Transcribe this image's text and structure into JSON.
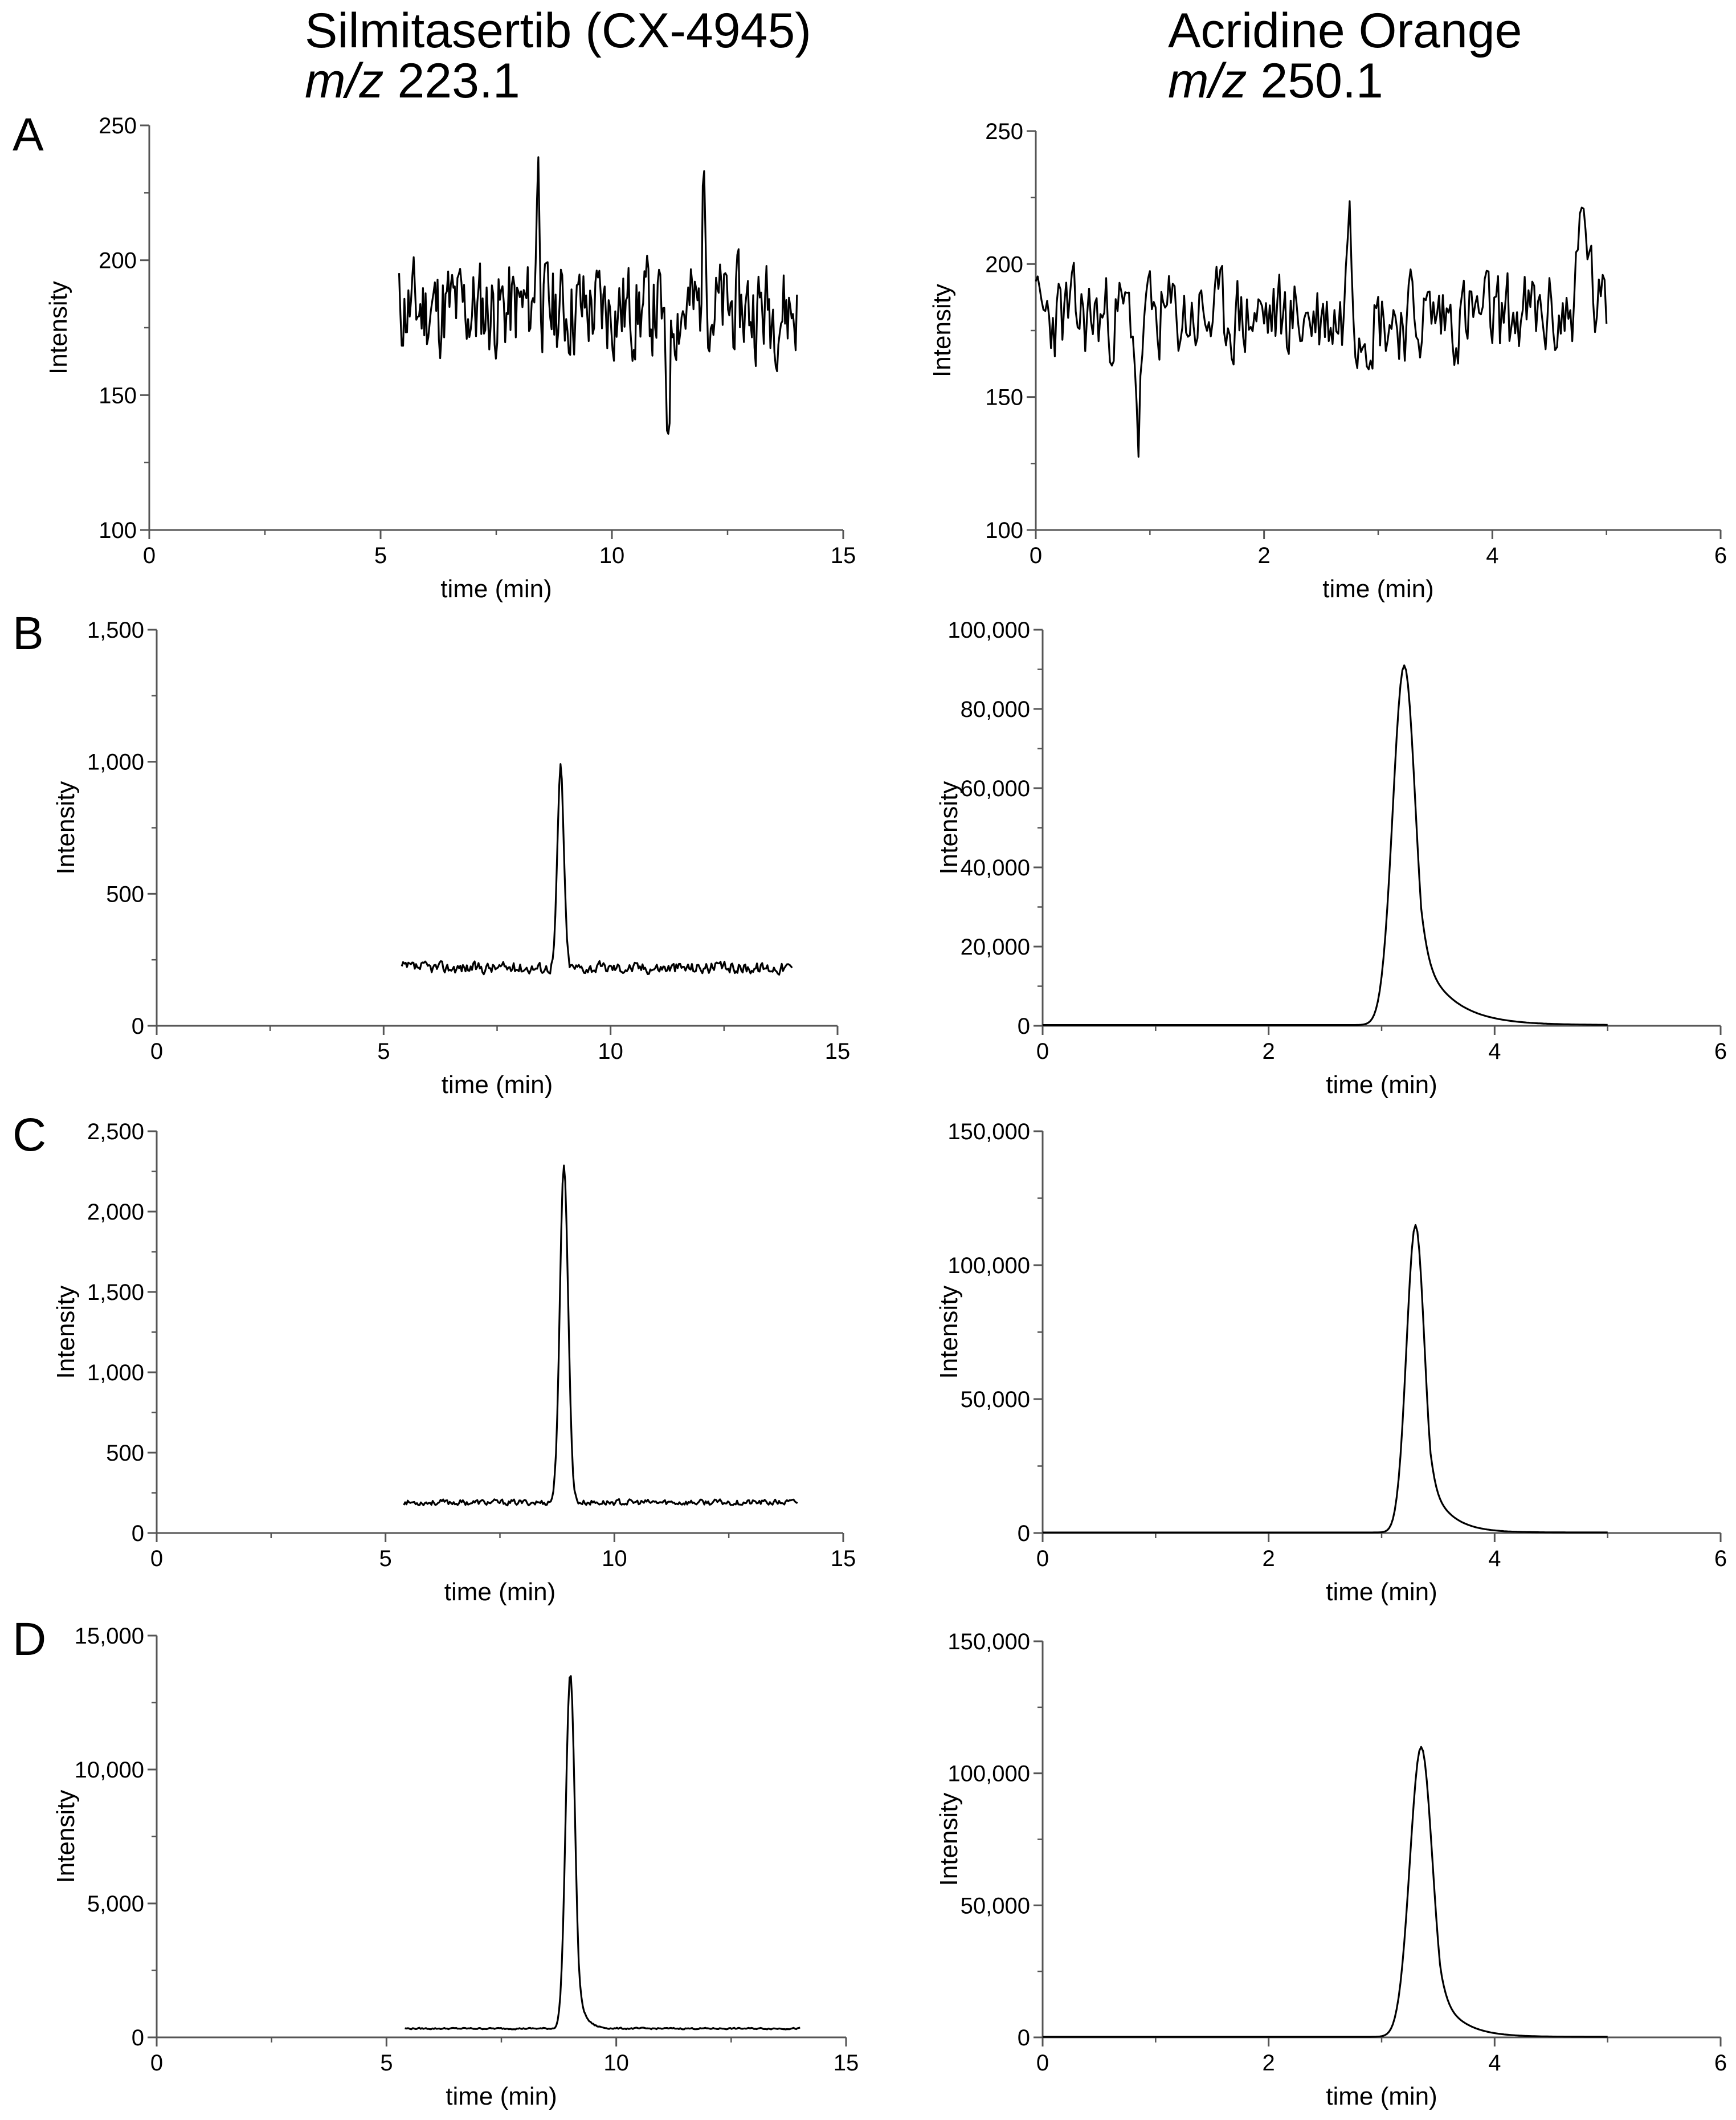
{
  "figure": {
    "columns": [
      {
        "title": "Silmitasertib (CX-4945)",
        "mz_label": "m/z",
        "mz_value": "223.1"
      },
      {
        "title": "Acridine Orange",
        "mz_label": "m/z",
        "mz_value": "250.1"
      }
    ],
    "row_labels": [
      "A",
      "B",
      "C",
      "D"
    ]
  },
  "chart_data": [
    {
      "id": "A-left",
      "type": "line",
      "row": "A",
      "column": "Silmitasertib (CX-4945)",
      "xlabel": "time (min)",
      "ylabel": "Intensity",
      "xlim": [
        0,
        15
      ],
      "ylim": [
        100,
        250
      ],
      "xticks": [
        0,
        5,
        10,
        15
      ],
      "yticks": [
        100,
        150,
        200,
        250
      ],
      "xticklabels": [
        "0",
        "5",
        "10",
        "15"
      ],
      "yticklabels": [
        "100",
        "150",
        "200",
        "250"
      ],
      "trace": {
        "start": 5.4,
        "end": 14.0,
        "baseline": 182,
        "noise": 18,
        "peak_time": 8.4,
        "peak_height": 235,
        "peak_width": 0.04,
        "secondary_peaks": [
          [
            12.0,
            233,
            0.04
          ],
          [
            11.2,
            140,
            0.05
          ]
        ],
        "seed": 11
      }
    },
    {
      "id": "A-right",
      "type": "line",
      "row": "A",
      "column": "Acridine Orange",
      "xlabel": "time (min)",
      "ylabel": "Intensity",
      "xlim": [
        0,
        6
      ],
      "ylim": [
        100,
        250
      ],
      "xticks": [
        0,
        2,
        4,
        6
      ],
      "yticks": [
        100,
        150,
        200,
        250
      ],
      "xticklabels": [
        "0",
        "2",
        "4",
        "6"
      ],
      "yticklabels": [
        "100",
        "150",
        "200",
        "250"
      ],
      "trace": {
        "start": 0.0,
        "end": 5.0,
        "baseline": 180,
        "noise": 17,
        "peak_time": 2.75,
        "peak_height": 229,
        "peak_width": 0.02,
        "secondary_peaks": [
          [
            4.8,
            216,
            0.05
          ],
          [
            0.9,
            136,
            0.02
          ]
        ],
        "seed": 23
      }
    },
    {
      "id": "B-left",
      "type": "line",
      "row": "B",
      "column": "Silmitasertib (CX-4945)",
      "xlabel": "time (min)",
      "ylabel": "Intensity",
      "xlim": [
        0,
        15
      ],
      "ylim": [
        0,
        1500
      ],
      "xticks": [
        0,
        5,
        10,
        15
      ],
      "yticks": [
        0,
        500,
        1000,
        1500
      ],
      "xticklabels": [
        "0",
        "5",
        "10",
        "15"
      ],
      "yticklabels": [
        "0",
        "500",
        "1,000",
        "1,500"
      ],
      "trace": {
        "start": 5.4,
        "end": 14.0,
        "baseline": 220,
        "noise": 22,
        "peak_time": 8.9,
        "peak_height": 980,
        "peak_width": 0.07,
        "secondary_peaks": [],
        "seed": 37
      }
    },
    {
      "id": "B-right",
      "type": "line",
      "row": "B",
      "column": "Acridine Orange",
      "xlabel": "time (min)",
      "ylabel": "Intensity",
      "xlim": [
        0,
        6
      ],
      "ylim": [
        0,
        100000
      ],
      "xticks": [
        0,
        2,
        4,
        6
      ],
      "yticks": [
        0,
        20000,
        40000,
        60000,
        80000,
        100000
      ],
      "xticklabels": [
        "0",
        "2",
        "4",
        "6"
      ],
      "yticklabels": [
        "0",
        "20,000",
        "40,000",
        "60,000",
        "80,000",
        "100,000"
      ],
      "trace": {
        "start": 0.0,
        "end": 5.0,
        "baseline": 200,
        "noise": 0,
        "peak_time": 3.2,
        "peak_height": 91000,
        "peak_width": 0.1,
        "tail": 0.28,
        "secondary_peaks": [],
        "seed": 41
      }
    },
    {
      "id": "C-left",
      "type": "line",
      "row": "C",
      "column": "Silmitasertib (CX-4945)",
      "xlabel": "time (min)",
      "ylabel": "Intensity",
      "xlim": [
        0,
        15
      ],
      "ylim": [
        0,
        2500
      ],
      "xticks": [
        0,
        5,
        10,
        15
      ],
      "yticks": [
        0,
        500,
        1000,
        1500,
        2000,
        2500
      ],
      "xticklabels": [
        "0",
        "5",
        "10",
        "15"
      ],
      "yticklabels": [
        "0",
        "500",
        "1,000",
        "1,500",
        "2,000",
        "2,500"
      ],
      "trace": {
        "start": 5.4,
        "end": 14.0,
        "baseline": 190,
        "noise": 18,
        "peak_time": 8.9,
        "peak_height": 2280,
        "peak_width": 0.09,
        "secondary_peaks": [],
        "seed": 53
      }
    },
    {
      "id": "C-right",
      "type": "line",
      "row": "C",
      "column": "Acridine Orange",
      "xlabel": "time (min)",
      "ylabel": "Intensity",
      "xlim": [
        0,
        6
      ],
      "ylim": [
        0,
        150000
      ],
      "xticks": [
        0,
        2,
        4,
        6
      ],
      "yticks": [
        0,
        50000,
        100000,
        150000
      ],
      "xticklabels": [
        "0",
        "2",
        "4",
        "6"
      ],
      "yticklabels": [
        "0",
        "50,000",
        "100,000",
        "150,000"
      ],
      "trace": {
        "start": 0.0,
        "end": 5.0,
        "baseline": 200,
        "noise": 0,
        "peak_time": 3.3,
        "peak_height": 115000,
        "peak_width": 0.08,
        "tail": 0.18,
        "secondary_peaks": [],
        "seed": 67
      }
    },
    {
      "id": "D-left",
      "type": "line",
      "row": "D",
      "column": "Silmitasertib (CX-4945)",
      "xlabel": "time (min)",
      "ylabel": "Intensity",
      "xlim": [
        0,
        15
      ],
      "ylim": [
        0,
        15000
      ],
      "xticks": [
        0,
        5,
        10,
        15
      ],
      "yticks": [
        0,
        5000,
        10000,
        15000
      ],
      "xticklabels": [
        "0",
        "5",
        "10",
        "15"
      ],
      "yticklabels": [
        "0",
        "5,000",
        "10,000",
        "15,000"
      ],
      "trace": {
        "start": 5.4,
        "end": 14.0,
        "baseline": 330,
        "noise": 28,
        "peak_time": 9.0,
        "peak_height": 13600,
        "peak_width": 0.1,
        "tail": 0.15,
        "secondary_peaks": [],
        "seed": 79
      }
    },
    {
      "id": "D-right",
      "type": "line",
      "row": "D",
      "column": "Acridine Orange",
      "xlabel": "time (min)",
      "ylabel": "Intensity",
      "xlim": [
        0,
        6
      ],
      "ylim": [
        0,
        150000
      ],
      "xticks": [
        0,
        2,
        4,
        6
      ],
      "yticks": [
        0,
        50000,
        100000,
        150000
      ],
      "xticklabels": [
        "0",
        "2",
        "4",
        "6"
      ],
      "yticklabels": [
        "0",
        "50,000",
        "100,000",
        "150,000"
      ],
      "trace": {
        "start": 0.0,
        "end": 5.0,
        "baseline": 200,
        "noise": 0,
        "peak_time": 3.35,
        "peak_height": 110000,
        "peak_width": 0.1,
        "tail": 0.2,
        "secondary_peaks": [],
        "seed": 83
      }
    }
  ]
}
